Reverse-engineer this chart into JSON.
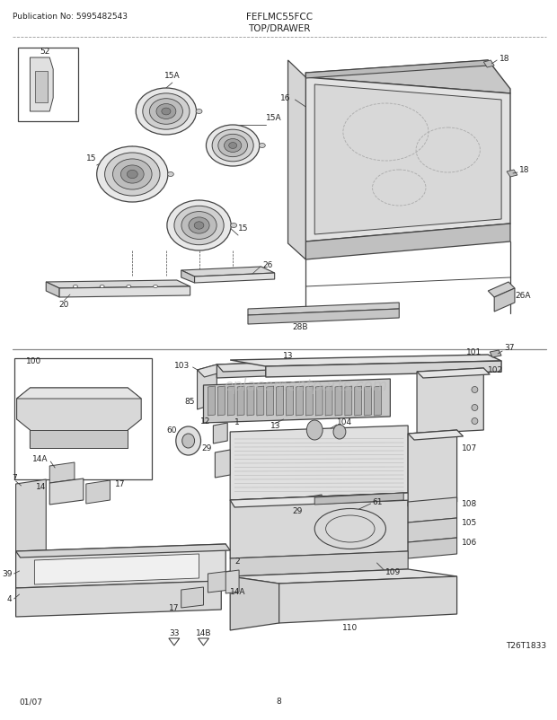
{
  "pub_no": "Publication No: 5995482543",
  "model": "FEFLMC55FCC",
  "section": "TOP/DRAWER",
  "date": "01/07",
  "page": "8",
  "diagram_id": "T26T1833",
  "bg_color": "#ffffff",
  "lc": "#444444",
  "tc": "#222222",
  "watermark": "eplacementparts.com",
  "wm_color": "#bbbbbb"
}
